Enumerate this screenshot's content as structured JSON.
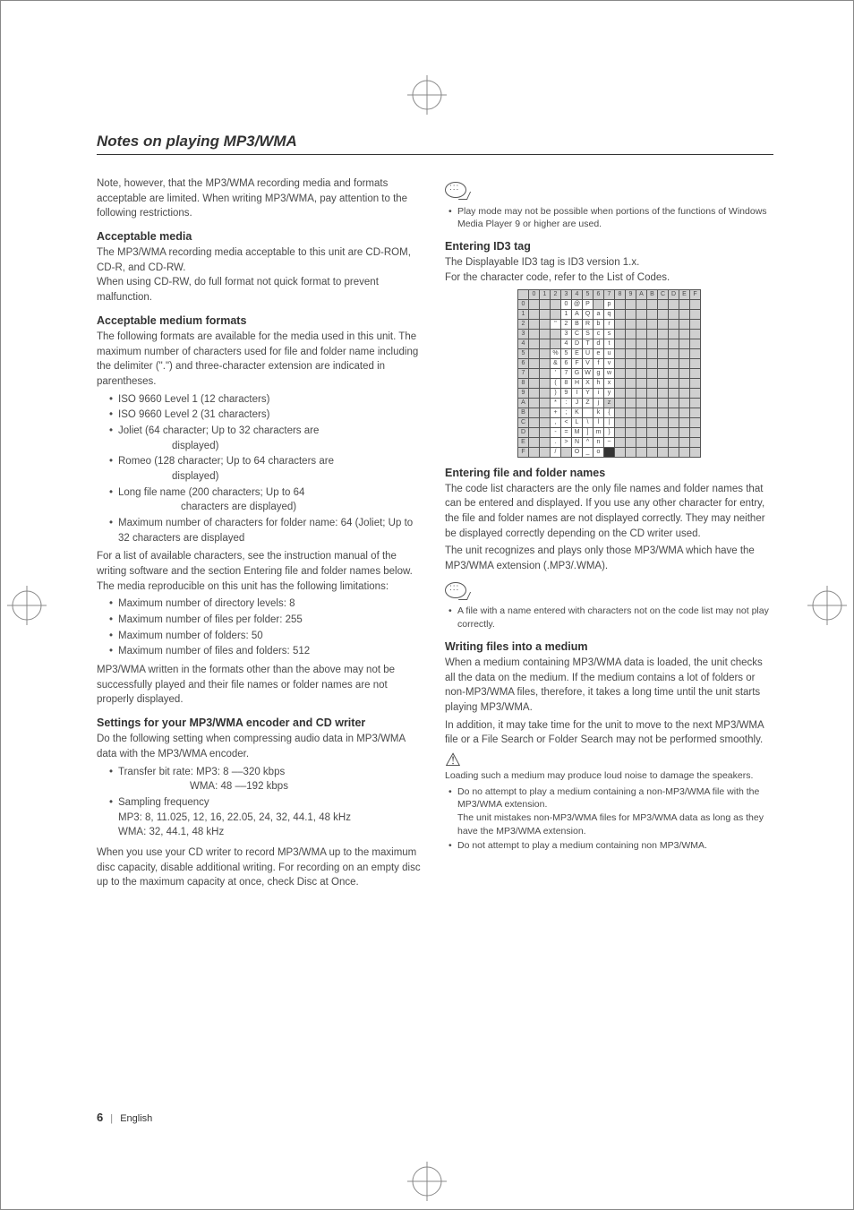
{
  "title": "Notes on playing MP3/WMA",
  "left": {
    "intro": "Note, however, that the MP3/WMA recording media and formats acceptable are limited. When writing MP3/WMA, pay attention to the following restrictions.",
    "h_media": "Acceptable media",
    "media_p": "The MP3/WMA recording media acceptable to this unit are CD-ROM, CD-R, and CD-RW.\nWhen using CD-RW, do full format not quick format to prevent malfunction.",
    "h_formats": "Acceptable medium formats",
    "formats_p": "The following formats are available for the media used in this unit. The maximum number of characters used for file and folder name including the delimiter (\".\") and three-character extension are indicated in parentheses.",
    "format_items": [
      "ISO 9660 Level 1 (12 characters)",
      "ISO 9660 Level 2 (31 characters)",
      "Joliet (64 character; Up to 32 characters are",
      "Romeo (128 character; Up to 64 characters are",
      "Long file name (200 characters; Up to 64",
      "Maximum number of characters for folder name: 64 (Joliet; Up to 32 characters are displayed"
    ],
    "disp": "displayed)",
    "chars_disp": "characters are displayed)",
    "formats_p2": "For a list of available characters, see the instruction manual of the writing software and the section Entering file and folder names below.\nThe media reproducible on this unit has the following limitations:",
    "limit_items": [
      "Maximum number of directory levels:  8",
      "Maximum number of files per folder:  255",
      "Maximum number of folders:  50",
      "Maximum number of files and folders: 512"
    ],
    "formats_p3": "MP3/WMA written in the formats other than the above may not be successfully played and their file names or folder names are not properly displayed.",
    "h_settings": "Settings for your MP3/WMA encoder and CD writer",
    "settings_p": "Do the following setting when compressing audio data in MP3/WMA data with the MP3/WMA encoder.",
    "bitrate": "Transfer bit rate: MP3: 8 ––320 kbps",
    "bitrate_wma": "WMA: 48 ––192 kbps",
    "sampling_head": "Sampling frequency",
    "sampling_mp3": "MP3: 8, 11.025, 12, 16, 22.05, 24, 32, 44.1, 48 kHz",
    "sampling_wma": "WMA: 32, 44.1, 48 kHz",
    "settings_p2": "When you use your CD writer to record MP3/WMA up to the maximum disc capacity, disable additional writing. For recording on an empty disc up to the maximum capacity at once, check Disc at Once."
  },
  "right": {
    "note1": "Play mode may not be possible when portions of the functions of Windows Media Player 9 or higher are used.",
    "h_id3": "Entering ID3 tag",
    "id3_p": "The Displayable ID3 tag is ID3 version 1.x.\nFor the character code, refer to the List of Codes.",
    "table": {
      "cols": [
        "0",
        "1",
        "2",
        "3",
        "4",
        "5",
        "6",
        "7",
        "8",
        "9",
        "A",
        "B",
        "C",
        "D",
        "E",
        "F"
      ],
      "row_labels": [
        "0",
        "1",
        "2",
        "3",
        "4",
        "5",
        "6",
        "7",
        "8",
        "9",
        "A",
        "B",
        "C",
        "D",
        "E",
        "F"
      ],
      "grid": [
        [
          "",
          "",
          "",
          "0",
          "@",
          "P",
          "",
          "p",
          "",
          "",
          "",
          "",
          "",
          "",
          "",
          ""
        ],
        [
          "",
          "",
          "",
          "1",
          "A",
          "Q",
          "a",
          "q",
          "",
          "",
          "",
          "",
          "",
          "",
          "",
          ""
        ],
        [
          "",
          "",
          "\"",
          "2",
          "B",
          "R",
          "b",
          "r",
          "",
          "",
          "",
          "",
          "",
          "",
          "",
          ""
        ],
        [
          "",
          "",
          "",
          "3",
          "C",
          "S",
          "c",
          "s",
          "",
          "",
          "",
          "",
          "",
          "",
          "",
          ""
        ],
        [
          "",
          "",
          "",
          "4",
          "D",
          "T",
          "d",
          "t",
          "",
          "",
          "",
          "",
          "",
          "",
          "",
          ""
        ],
        [
          "",
          "",
          "%",
          "5",
          "E",
          "U",
          "e",
          "u",
          "",
          "",
          "",
          "",
          "",
          "",
          "",
          ""
        ],
        [
          "",
          "",
          "&",
          "6",
          "F",
          "V",
          "f",
          "v",
          "",
          "",
          "",
          "",
          "",
          "",
          "",
          ""
        ],
        [
          "",
          "",
          "'",
          "7",
          "G",
          "W",
          "g",
          "w",
          "",
          "",
          "",
          "",
          "",
          "",
          "",
          ""
        ],
        [
          "",
          "",
          "(",
          "8",
          "H",
          "X",
          "h",
          "x",
          "",
          "",
          "",
          "",
          "",
          "",
          "",
          ""
        ],
        [
          "",
          "",
          ")",
          "9",
          "I",
          "Y",
          "i",
          "y",
          "",
          "",
          "",
          "",
          "",
          "",
          "",
          ""
        ],
        [
          "",
          "",
          "*",
          ":",
          "J",
          "Z",
          "j",
          "z",
          "",
          "",
          "",
          "",
          "",
          "",
          "",
          ""
        ],
        [
          "",
          "",
          "+",
          ";",
          "K",
          "",
          "k",
          "{",
          "",
          "",
          "",
          "",
          "",
          "",
          "",
          ""
        ],
        [
          "",
          "",
          ",",
          "<",
          "L",
          "\\",
          "l",
          "|",
          "",
          "",
          "",
          "",
          "",
          "",
          "",
          ""
        ],
        [
          "",
          "",
          "-",
          "=",
          "M",
          "]",
          "m",
          "}",
          "",
          "",
          "",
          "",
          "",
          "",
          "",
          ""
        ],
        [
          "",
          "",
          ".",
          ">",
          "N",
          "^",
          "n",
          "~",
          "",
          "",
          "",
          "",
          "",
          "",
          "",
          ""
        ],
        [
          "",
          "",
          "/",
          "",
          "O",
          "_",
          "o",
          "",
          "",
          "",
          "",
          "",
          "",
          "",
          "",
          ""
        ]
      ],
      "blank_cols": [
        0,
        1,
        8,
        9,
        10,
        11,
        12,
        13,
        14,
        15
      ],
      "blank_extra": [
        [
          0,
          2
        ],
        [
          1,
          2
        ],
        [
          3,
          2
        ],
        [
          4,
          2
        ],
        [
          0,
          6
        ],
        [
          10,
          7
        ],
        [
          15,
          3
        ]
      ],
      "solid_extra": [
        [
          15,
          7
        ]
      ]
    },
    "h_names": "Entering file and folder names",
    "names_p1": "The code list characters are the only file names and folder names that can be entered and displayed. If you use any other character for entry, the file and folder names are not displayed correctly. They may neither be displayed correctly depending on the CD writer used.",
    "names_p2": "The unit recognizes and plays only those MP3/WMA which have the MP3/WMA extension (.MP3/.WMA).",
    "note2": "A file with a name entered with characters not on the code list may not play correctly.",
    "h_writing": "Writing files into a medium",
    "writing_p1": "When a medium containing MP3/WMA data is loaded, the unit checks all the data on the medium. If the medium contains a lot of folders or non-MP3/WMA files, therefore, it takes a long time until the unit starts playing MP3/WMA.",
    "writing_p2": "In addition, it may take time for the unit to move to the next MP3/WMA file or a File Search or Folder Search may not be performed smoothly.",
    "warn_p": "Loading such a medium may produce loud noise to damage the speakers.",
    "warn_items": [
      "Do no attempt to play a medium containing a non-MP3/WMA file with the MP3/WMA extension.\nThe unit mistakes non-MP3/WMA files for MP3/WMA data as long as they have the MP3/WMA extension.",
      "Do not attempt to play a medium containing non MP3/WMA."
    ]
  },
  "footer": {
    "page": "6",
    "lang": "English"
  },
  "colors": {
    "text": "#4a4a4a",
    "heading": "#333333",
    "rule": "#333333",
    "table_border": "#555555",
    "table_shade": "#d0d0d0"
  }
}
